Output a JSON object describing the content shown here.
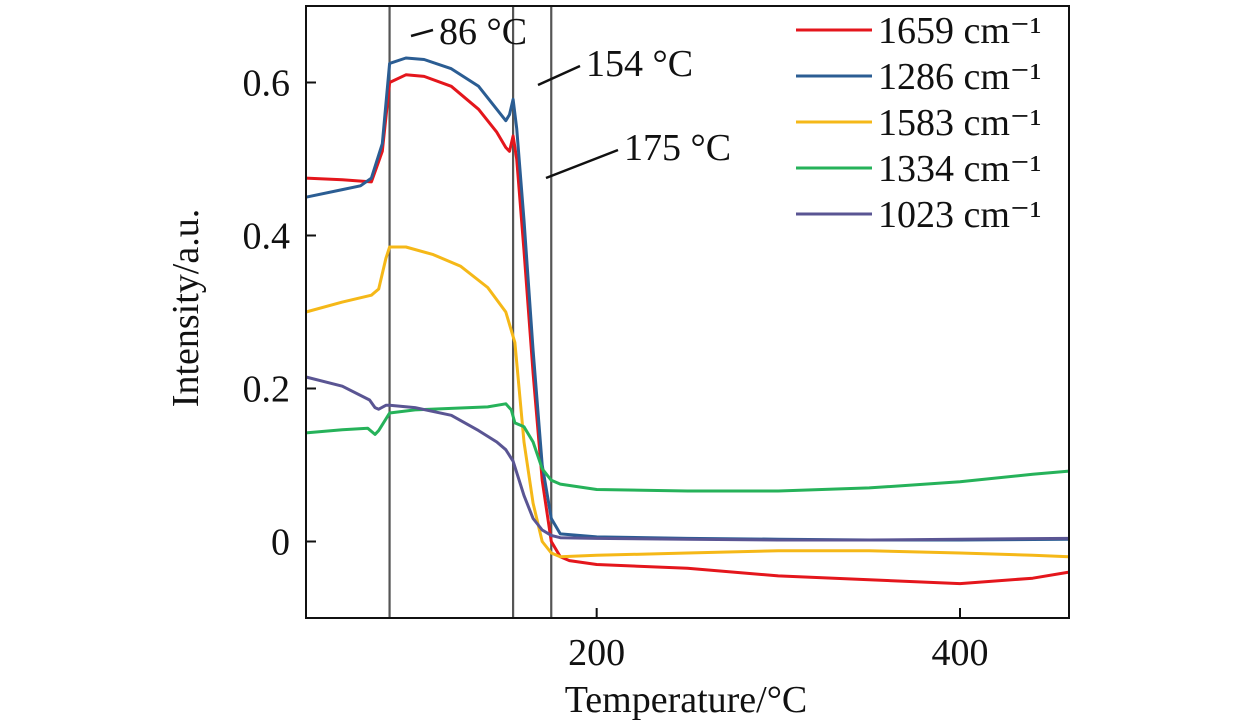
{
  "chart_data": {
    "type": "line",
    "xlabel": "Temperature/°C",
    "ylabel": "Intensity/a.u.",
    "xlim": [
      40,
      460
    ],
    "ylim": [
      -0.1,
      0.7
    ],
    "xticks": [
      200,
      400
    ],
    "yticks": [
      0,
      0.2,
      0.4,
      0.6
    ],
    "xtick_labels": [
      "200",
      "400"
    ],
    "ytick_labels": [
      "0",
      "0.2",
      "0.4",
      "0.6"
    ],
    "grid": false,
    "legend_position": "top-right",
    "vlines": [
      86,
      154,
      175
    ],
    "annotations": [
      {
        "text": "86 °C",
        "x": 86,
        "y": 0.66
      },
      {
        "text": "154 °C",
        "x": 157,
        "y": 0.59
      },
      {
        "text": "175 °C",
        "x": 178,
        "y": 0.47
      }
    ],
    "series": [
      {
        "name": "1659 cm⁻¹",
        "color": "#e4161c",
        "x": [
          40,
          60,
          76,
          82,
          86,
          95,
          105,
          120,
          135,
          145,
          150,
          152,
          154,
          156,
          160,
          165,
          170,
          175,
          180,
          185,
          200,
          250,
          300,
          350,
          400,
          440,
          460
        ],
        "y": [
          0.475,
          0.473,
          0.47,
          0.51,
          0.6,
          0.61,
          0.608,
          0.595,
          0.565,
          0.535,
          0.515,
          0.51,
          0.53,
          0.5,
          0.38,
          0.22,
          0.08,
          0.0,
          -0.02,
          -0.025,
          -0.03,
          -0.035,
          -0.045,
          -0.05,
          -0.055,
          -0.048,
          -0.04
        ]
      },
      {
        "name": "1286 cm⁻¹",
        "color": "#2b5d93",
        "x": [
          40,
          60,
          70,
          76,
          82,
          86,
          95,
          105,
          120,
          135,
          145,
          150,
          152,
          154,
          156,
          160,
          165,
          170,
          175,
          180,
          200,
          250,
          300,
          350,
          400,
          460
        ],
        "y": [
          0.45,
          0.46,
          0.465,
          0.475,
          0.52,
          0.625,
          0.632,
          0.63,
          0.618,
          0.595,
          0.565,
          0.55,
          0.558,
          0.578,
          0.54,
          0.42,
          0.25,
          0.1,
          0.03,
          0.01,
          0.006,
          0.004,
          0.003,
          0.002,
          0.002,
          0.003
        ]
      },
      {
        "name": "1583 cm⁻¹",
        "color": "#f5b818",
        "x": [
          40,
          60,
          76,
          80,
          84,
          86,
          95,
          110,
          125,
          140,
          150,
          155,
          160,
          165,
          170,
          175,
          180,
          200,
          250,
          300,
          350,
          400,
          440,
          460
        ],
        "y": [
          0.3,
          0.313,
          0.322,
          0.33,
          0.37,
          0.385,
          0.385,
          0.375,
          0.36,
          0.332,
          0.3,
          0.26,
          0.13,
          0.05,
          0.0,
          -0.015,
          -0.02,
          -0.018,
          -0.015,
          -0.012,
          -0.012,
          -0.015,
          -0.018,
          -0.02
        ]
      },
      {
        "name": "1334 cm⁻¹",
        "color": "#26b25a",
        "x": [
          40,
          60,
          74,
          78,
          80,
          86,
          100,
          120,
          140,
          150,
          153,
          155,
          160,
          165,
          170,
          175,
          180,
          200,
          250,
          300,
          350,
          400,
          440,
          460
        ],
        "y": [
          0.142,
          0.146,
          0.148,
          0.14,
          0.145,
          0.168,
          0.172,
          0.174,
          0.176,
          0.18,
          0.172,
          0.155,
          0.15,
          0.13,
          0.095,
          0.08,
          0.075,
          0.068,
          0.066,
          0.066,
          0.07,
          0.078,
          0.088,
          0.092
        ]
      },
      {
        "name": "1023 cm⁻¹",
        "color": "#5a5593",
        "x": [
          40,
          60,
          75,
          78,
          80,
          84,
          86,
          100,
          120,
          135,
          145,
          150,
          154,
          160,
          165,
          170,
          175,
          180,
          200,
          250,
          300,
          350,
          400,
          460
        ],
        "y": [
          0.215,
          0.203,
          0.185,
          0.175,
          0.173,
          0.178,
          0.178,
          0.175,
          0.165,
          0.145,
          0.13,
          0.12,
          0.105,
          0.06,
          0.03,
          0.015,
          0.008,
          0.005,
          0.004,
          0.003,
          0.002,
          0.002,
          0.003,
          0.004
        ]
      }
    ]
  }
}
